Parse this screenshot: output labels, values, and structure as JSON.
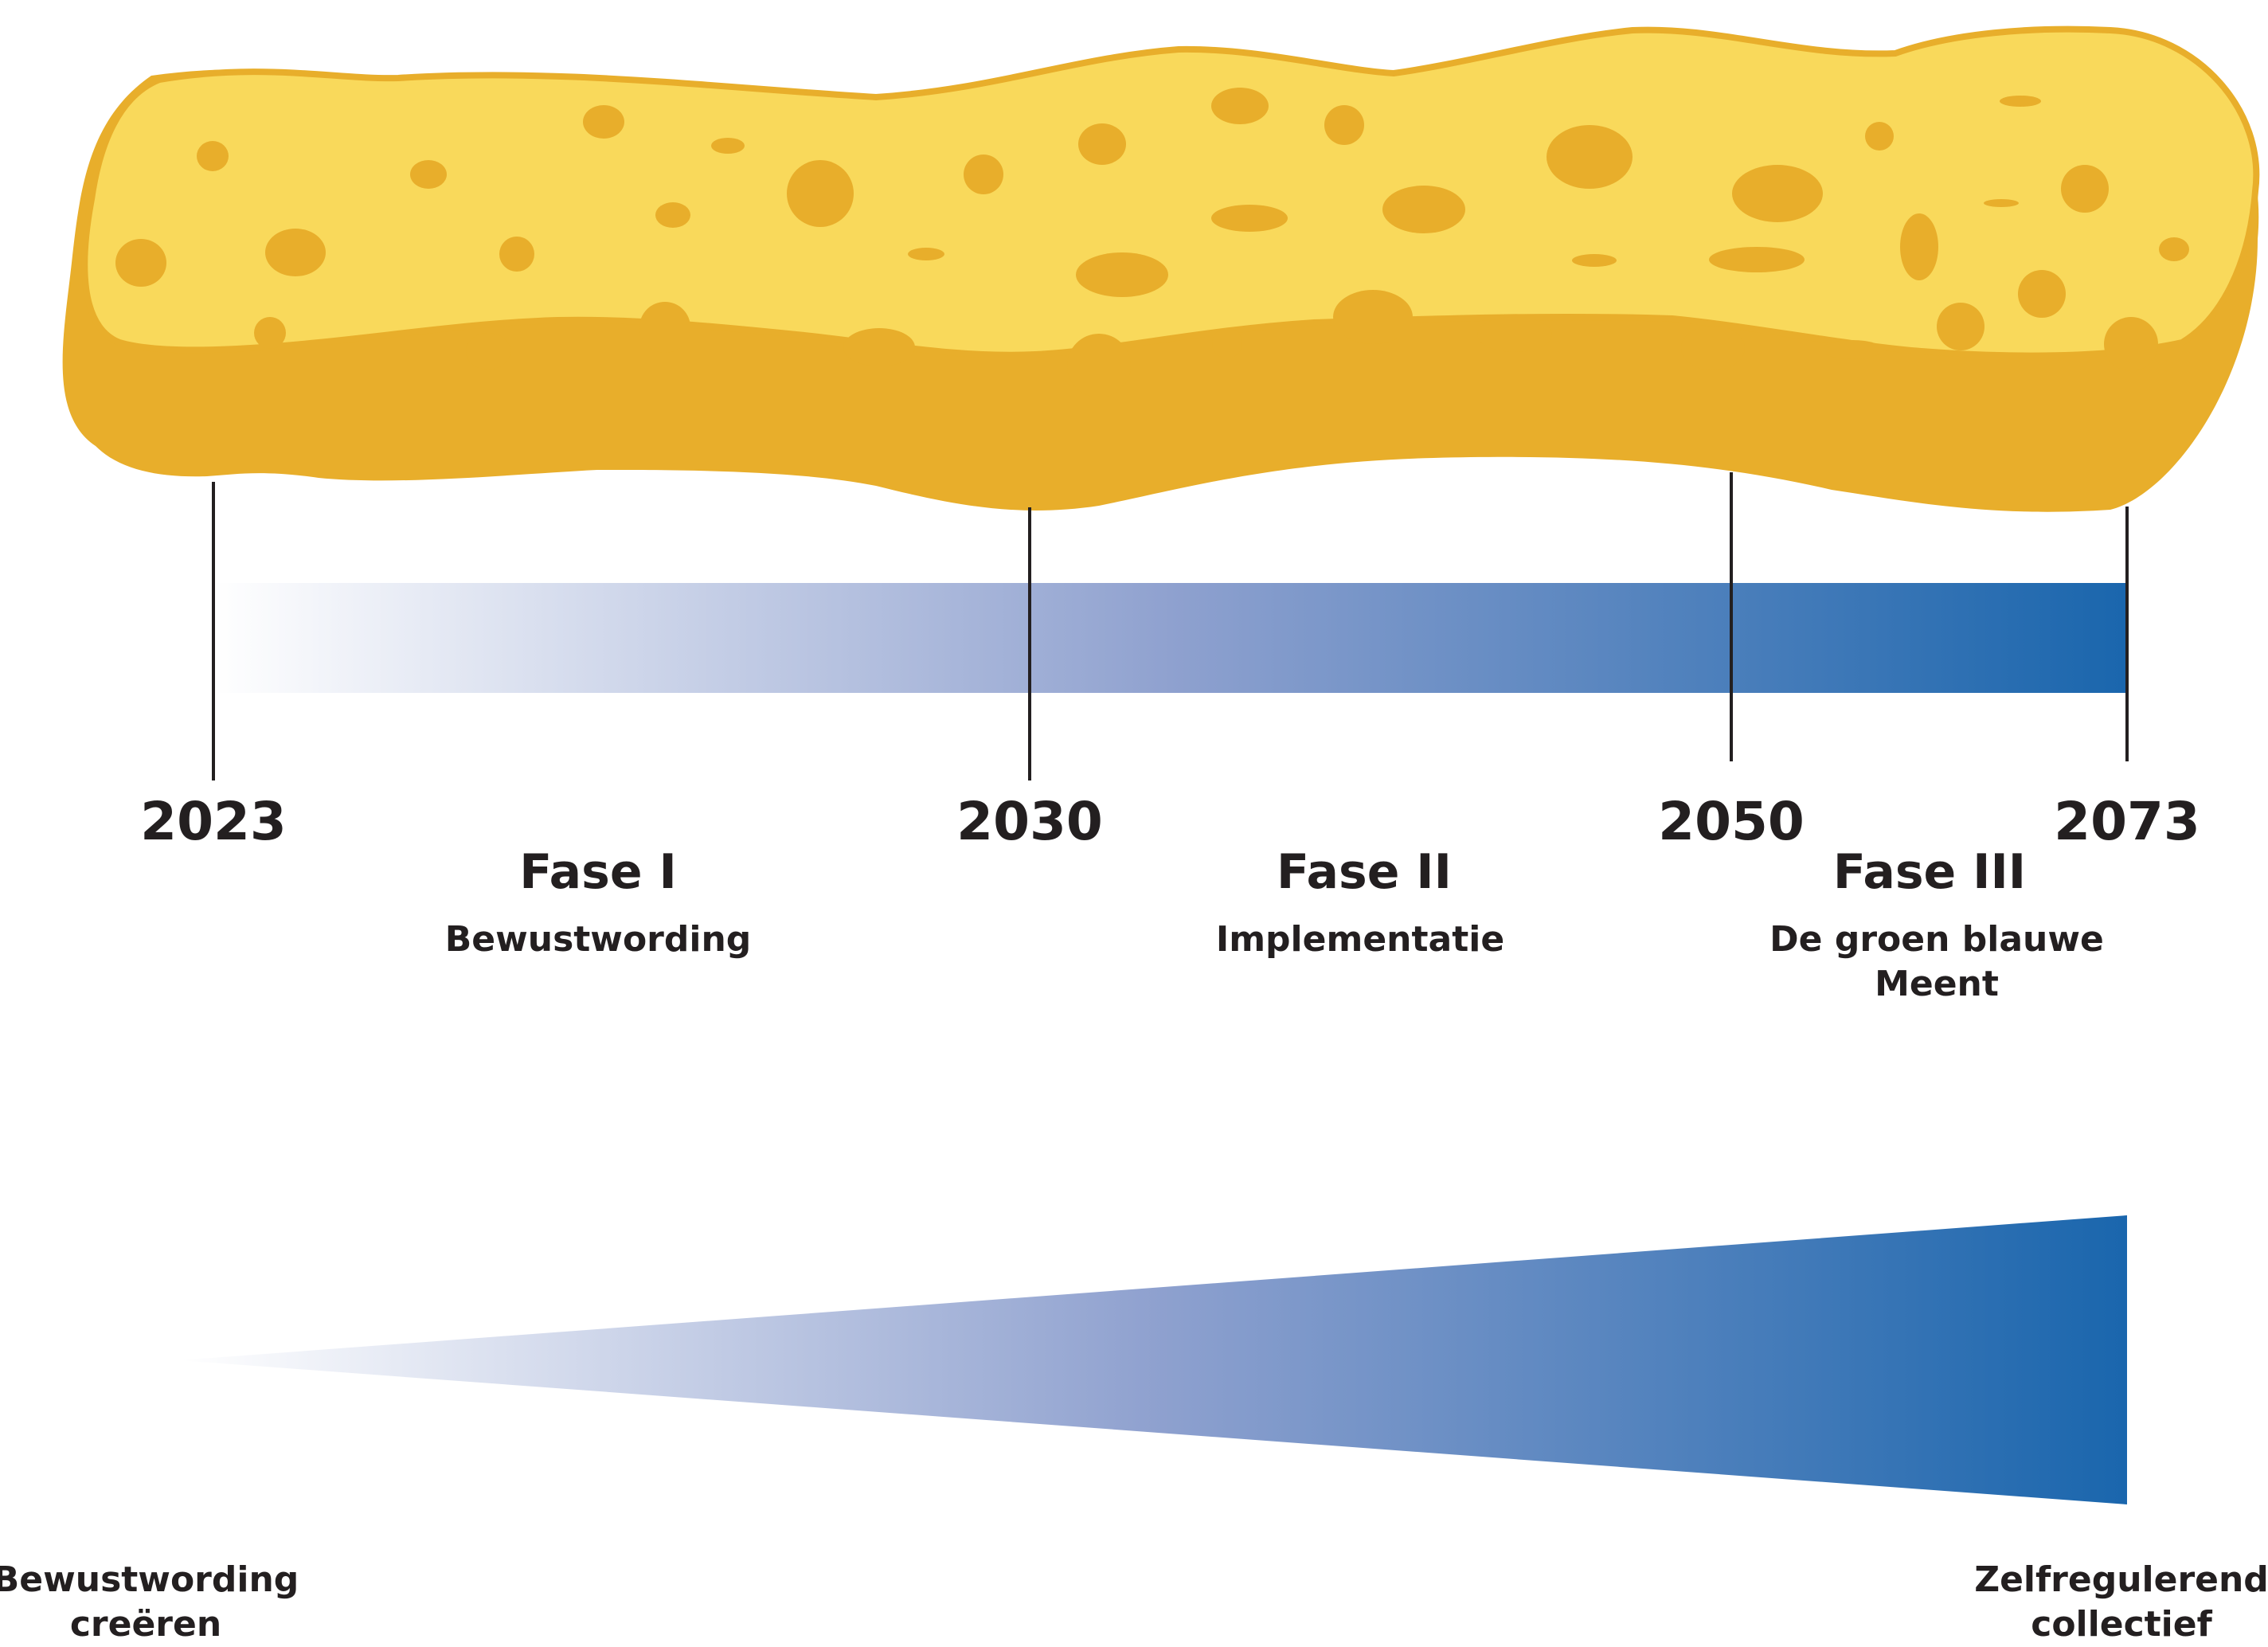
{
  "timeline": {
    "milestones": [
      {
        "year": "2023"
      },
      {
        "year": "2030"
      },
      {
        "year": "2050"
      },
      {
        "year": "2073"
      }
    ],
    "phases": [
      {
        "title": "Fase I",
        "subtitle_lines": [
          "Bewustwording"
        ]
      },
      {
        "title": "Fase II",
        "subtitle_lines": [
          "Implementatie"
        ]
      },
      {
        "title": "Fase III",
        "subtitle_lines": [
          "De groen blauwe",
          "Meent"
        ]
      }
    ]
  },
  "wedge": {
    "start_label_lines": [
      "Bewustwording",
      "creëren"
    ],
    "end_label_lines": [
      "Zelfregulerend",
      "collectief"
    ]
  },
  "colors": {
    "sponge_body": "#f9d95b",
    "sponge_shadow": "#e8ae2b",
    "sponge_outline": "#e8ae2b",
    "sponge_holes": "#e8ae2b",
    "gradient_start": "#ffffff",
    "gradient_mid": "#8fa1cf",
    "gradient_end": "#1a66ad",
    "line": "#231f20",
    "text": "#231f20"
  }
}
